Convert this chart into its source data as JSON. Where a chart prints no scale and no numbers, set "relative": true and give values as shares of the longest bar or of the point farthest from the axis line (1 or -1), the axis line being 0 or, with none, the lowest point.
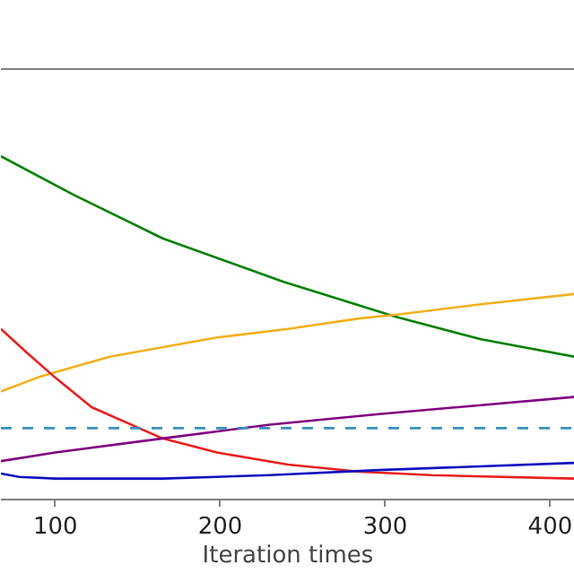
{
  "chart_data": {
    "type": "line",
    "xlabel": "Iteration times",
    "relative": true,
    "xlim": [
      67,
      415
    ],
    "xticks": [
      100,
      200,
      300,
      400
    ],
    "tick_labels": "x",
    "grid": false,
    "marker": "none",
    "line_style": "solid",
    "series": [
      {
        "color": "#008000",
        "x": [
          67,
          111,
          165,
          238,
          306,
          358,
          415
        ],
        "values": [
          1,
          0.888,
          0.761,
          0.635,
          0.533,
          0.467,
          0.416
        ]
      },
      {
        "color": "#f2b01e",
        "x": [
          67,
          89,
          100,
          133,
          198,
          241,
          285,
          306,
          358,
          415
        ],
        "values": [
          0.315,
          0.355,
          0.371,
          0.416,
          0.472,
          0.497,
          0.528,
          0.538,
          0.569,
          0.599
        ]
      },
      {
        "color": "#e8201e",
        "x": [
          67,
          82,
          100,
          122,
          165,
          198,
          241,
          285,
          328,
          415
        ],
        "values": [
          0.497,
          0.431,
          0.355,
          0.269,
          0.178,
          0.137,
          0.102,
          0.081,
          0.071,
          0.061
        ]
      },
      {
        "color": "#800080",
        "x": [
          67,
          100,
          165,
          230,
          296,
          415
        ],
        "values": [
          0.112,
          0.137,
          0.178,
          0.218,
          0.249,
          0.299
        ]
      },
      {
        "color": "#1010c0",
        "x": [
          67,
          78,
          100,
          165,
          230,
          296,
          415
        ],
        "values": [
          0.076,
          0.066,
          0.061,
          0.061,
          0.071,
          0.086,
          0.107
        ]
      }
    ],
    "ref_lines": [
      {
        "axis": "y",
        "value": 0.208,
        "color": "#3a8fc0",
        "line_style": "dashed"
      }
    ]
  }
}
